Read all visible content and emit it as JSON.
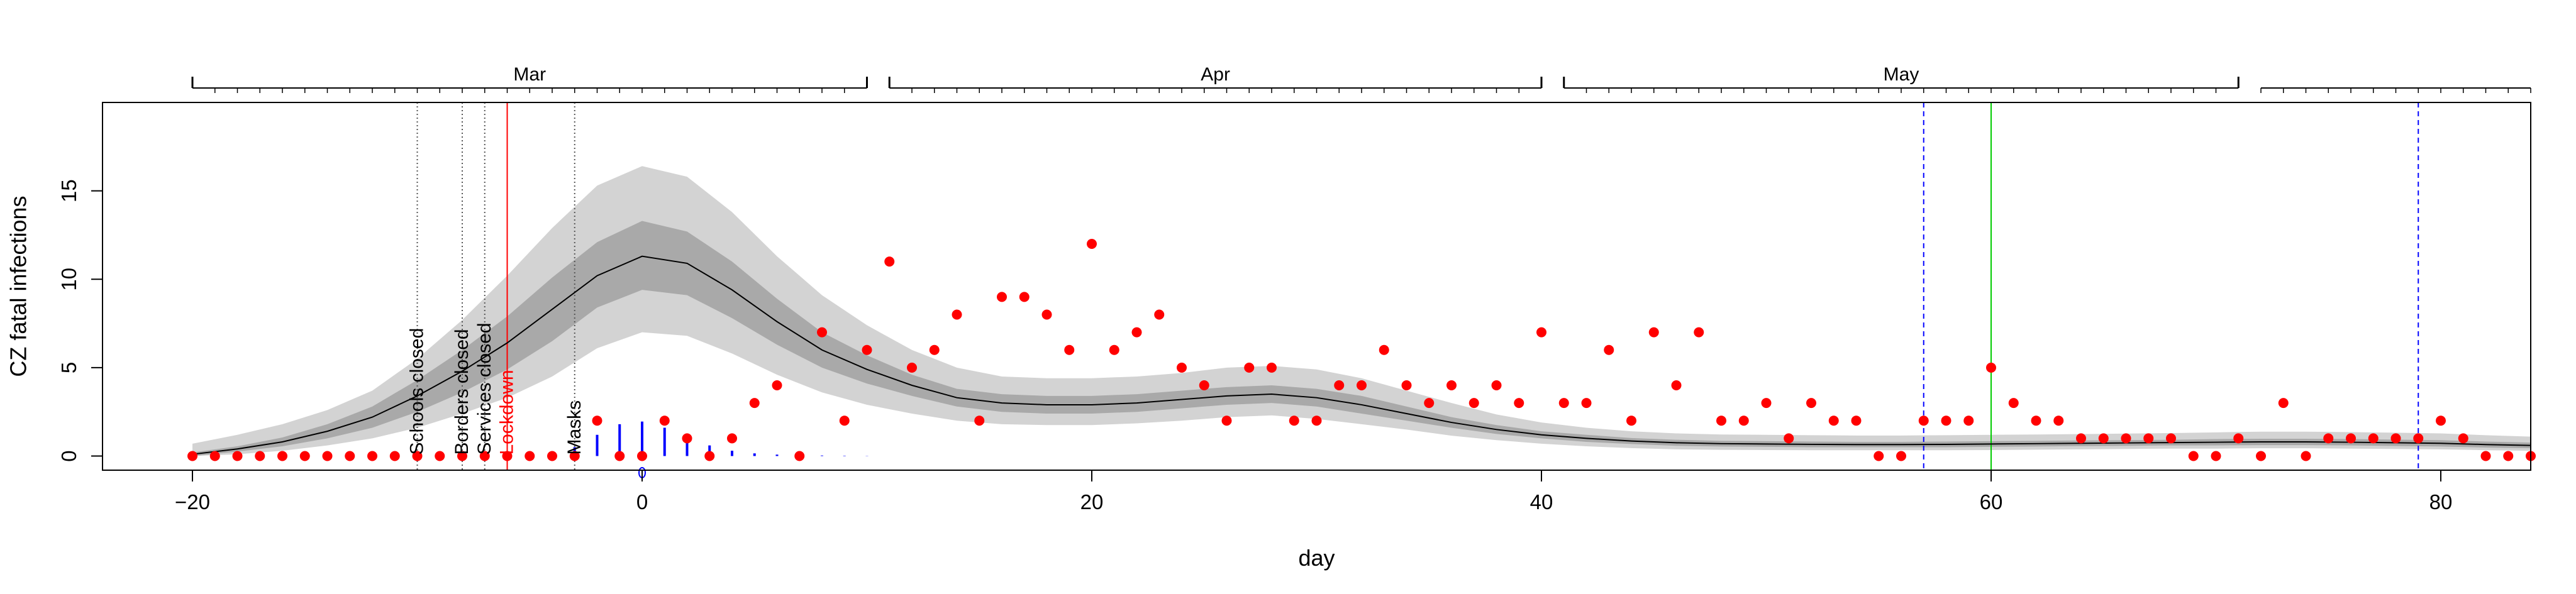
{
  "chart_data": {
    "type": "scatter",
    "title": "",
    "xlabel": "day",
    "ylabel": "CZ fatal infections",
    "xlim": [
      -24,
      84
    ],
    "ylim": [
      -0.8,
      20
    ],
    "x_ticks": [
      -20,
      0,
      20,
      40,
      60,
      80
    ],
    "y_ticks": [
      0,
      5,
      10,
      15
    ],
    "grid": false,
    "legend": "none",
    "top_axis": {
      "month_labels": [
        {
          "label": "Mar",
          "start": -20,
          "end": 10
        },
        {
          "label": "Apr",
          "start": 11,
          "end": 40
        },
        {
          "label": "May",
          "start": 41,
          "end": 71
        }
      ],
      "tick_start": -20,
      "tick_end": 84
    },
    "colors": {
      "points": "#ff0000",
      "mean": "#000000",
      "band_outer": "#d3d3d3",
      "band_inner": "#a9a9a9",
      "delay": "#0000ff",
      "lockdown": "#ff0000",
      "green_line": "#00cc00",
      "event_lines": "#555555"
    },
    "events": [
      {
        "label": "Schools closed",
        "day": -10,
        "color": "#000000",
        "style": "dotted"
      },
      {
        "label": "Borders closed",
        "day": -8,
        "color": "#000000",
        "style": "dotted"
      },
      {
        "label": "Services closed",
        "day": -7,
        "color": "#000000",
        "style": "dotted"
      },
      {
        "label": "Lockdown",
        "day": -6,
        "color": "#ff0000",
        "style": "solid"
      },
      {
        "label": "Masks",
        "day": -3,
        "color": "#000000",
        "style": "dotted"
      }
    ],
    "extra_vlines": [
      {
        "day": 57,
        "color": "#0000ff",
        "style": "dashed"
      },
      {
        "day": 60,
        "color": "#00cc00",
        "style": "solid"
      },
      {
        "day": 79,
        "color": "#0000ff",
        "style": "dashed"
      }
    ],
    "observed": {
      "x": [
        -20,
        -19,
        -18,
        -17,
        -16,
        -15,
        -14,
        -13,
        -12,
        -11,
        -10,
        -9,
        -8,
        -7,
        -6,
        -5,
        -4,
        -3,
        -2,
        -1,
        0,
        1,
        2,
        3,
        4,
        5,
        6,
        7,
        8,
        9,
        10,
        11,
        12,
        13,
        14,
        15,
        16,
        17,
        18,
        19,
        20,
        21,
        22,
        23,
        24,
        25,
        26,
        27,
        28,
        29,
        30,
        31,
        32,
        33,
        34,
        35,
        36,
        37,
        38,
        39,
        40,
        41,
        42,
        43,
        44,
        45,
        46,
        47,
        48,
        49,
        50,
        51,
        52,
        53,
        54,
        55,
        56,
        57,
        58,
        59,
        60,
        61,
        62,
        63,
        64,
        65,
        66,
        67,
        68,
        69,
        70,
        71,
        72,
        73,
        74,
        75,
        76,
        77,
        78,
        79,
        80,
        81,
        82,
        83,
        84
      ],
      "y": [
        0,
        0,
        0,
        0,
        0,
        0,
        0,
        0,
        0,
        0,
        0,
        0,
        0,
        0,
        0,
        0,
        0,
        0,
        2,
        0,
        0,
        2,
        1,
        0,
        1,
        3,
        4,
        0,
        7,
        2,
        6,
        11,
        5,
        6,
        8,
        2,
        9,
        9,
        8,
        6,
        12,
        6,
        7,
        8,
        5,
        4,
        2,
        5,
        5,
        2,
        2,
        4,
        4,
        6,
        4,
        3,
        4,
        3,
        4,
        3,
        7,
        3,
        3,
        6,
        2,
        7,
        4,
        7,
        2,
        2,
        3,
        1,
        3,
        2,
        2,
        0,
        0,
        2,
        2,
        2,
        5,
        3,
        2,
        2,
        1,
        1,
        1,
        1,
        1,
        0,
        0,
        1,
        0,
        3,
        0,
        1,
        1,
        1,
        1,
        1,
        2,
        1,
        0,
        0,
        0
      ]
    },
    "fit": {
      "x": [
        -20,
        -18,
        -16,
        -14,
        -12,
        -10,
        -8,
        -6,
        -4,
        -2,
        0,
        2,
        4,
        6,
        8,
        10,
        12,
        14,
        16,
        18,
        20,
        22,
        24,
        26,
        28,
        30,
        32,
        34,
        36,
        38,
        40,
        42,
        44,
        46,
        48,
        50,
        52,
        54,
        56,
        58,
        60,
        62,
        64,
        66,
        68,
        70,
        72,
        74,
        76,
        78,
        80,
        82,
        84
      ],
      "mean": [
        0.1,
        0.4,
        0.8,
        1.4,
        2.2,
        3.4,
        4.8,
        6.4,
        8.3,
        10.2,
        11.3,
        10.9,
        9.4,
        7.6,
        6.0,
        4.9,
        4.0,
        3.3,
        3.0,
        2.9,
        2.9,
        3.0,
        3.2,
        3.4,
        3.5,
        3.3,
        2.9,
        2.4,
        1.9,
        1.5,
        1.2,
        1.0,
        0.85,
        0.75,
        0.7,
        0.68,
        0.66,
        0.65,
        0.65,
        0.66,
        0.68,
        0.7,
        0.72,
        0.74,
        0.76,
        0.78,
        0.8,
        0.8,
        0.78,
        0.75,
        0.72,
        0.65,
        0.6
      ],
      "inner_low": [
        0.0,
        0.25,
        0.55,
        1.0,
        1.6,
        2.5,
        3.6,
        4.9,
        6.5,
        8.4,
        9.4,
        9.1,
        7.8,
        6.3,
        5.0,
        4.1,
        3.4,
        2.8,
        2.5,
        2.4,
        2.4,
        2.5,
        2.7,
        2.9,
        3.0,
        2.8,
        2.4,
        2.0,
        1.6,
        1.25,
        1.0,
        0.8,
        0.68,
        0.58,
        0.54,
        0.52,
        0.5,
        0.5,
        0.5,
        0.5,
        0.52,
        0.54,
        0.56,
        0.58,
        0.6,
        0.6,
        0.62,
        0.62,
        0.6,
        0.57,
        0.54,
        0.48,
        0.44
      ],
      "inner_high": [
        0.2,
        0.55,
        1.05,
        1.8,
        2.8,
        4.3,
        6.0,
        7.9,
        10.1,
        12.1,
        13.3,
        12.7,
        11.0,
        8.9,
        7.0,
        5.7,
        4.6,
        3.8,
        3.5,
        3.4,
        3.4,
        3.5,
        3.7,
        3.9,
        4.0,
        3.8,
        3.4,
        2.8,
        2.2,
        1.75,
        1.4,
        1.2,
        1.02,
        0.92,
        0.86,
        0.84,
        0.82,
        0.8,
        0.8,
        0.82,
        0.84,
        0.86,
        0.88,
        0.9,
        0.92,
        0.96,
        0.98,
        0.98,
        0.96,
        0.93,
        0.9,
        0.82,
        0.76
      ],
      "outer_low": [
        0.0,
        0.1,
        0.3,
        0.6,
        1.0,
        1.6,
        2.4,
        3.3,
        4.5,
        6.1,
        7.0,
        6.8,
        5.8,
        4.6,
        3.6,
        2.9,
        2.4,
        2.0,
        1.8,
        1.75,
        1.75,
        1.85,
        2.0,
        2.2,
        2.3,
        2.1,
        1.8,
        1.5,
        1.15,
        0.9,
        0.7,
        0.55,
        0.45,
        0.38,
        0.35,
        0.34,
        0.33,
        0.33,
        0.33,
        0.33,
        0.34,
        0.36,
        0.38,
        0.4,
        0.42,
        0.42,
        0.44,
        0.44,
        0.42,
        0.4,
        0.38,
        0.33,
        0.3
      ],
      "outer_high": [
        0.7,
        1.2,
        1.8,
        2.6,
        3.7,
        5.5,
        7.7,
        10.2,
        12.9,
        15.3,
        16.4,
        15.8,
        13.8,
        11.3,
        9.1,
        7.4,
        6.0,
        5.0,
        4.5,
        4.4,
        4.4,
        4.5,
        4.7,
        5.0,
        5.1,
        4.9,
        4.4,
        3.7,
        3.0,
        2.35,
        1.9,
        1.6,
        1.4,
        1.28,
        1.22,
        1.2,
        1.18,
        1.16,
        1.16,
        1.18,
        1.2,
        1.22,
        1.24,
        1.27,
        1.3,
        1.34,
        1.38,
        1.38,
        1.35,
        1.32,
        1.28,
        1.18,
        1.1
      ]
    },
    "delay_distribution": {
      "x": [
        -4,
        -3,
        -2,
        -1,
        0,
        1,
        2,
        3,
        4,
        5,
        6,
        7,
        8,
        9,
        10
      ],
      "y": [
        0.15,
        0.5,
        1.2,
        1.8,
        1.95,
        1.6,
        1.05,
        0.6,
        0.3,
        0.15,
        0.08,
        0.05,
        0.03,
        0.02,
        0.01
      ]
    },
    "marker_at_zero": {
      "day": 0,
      "value": -0.3
    }
  }
}
